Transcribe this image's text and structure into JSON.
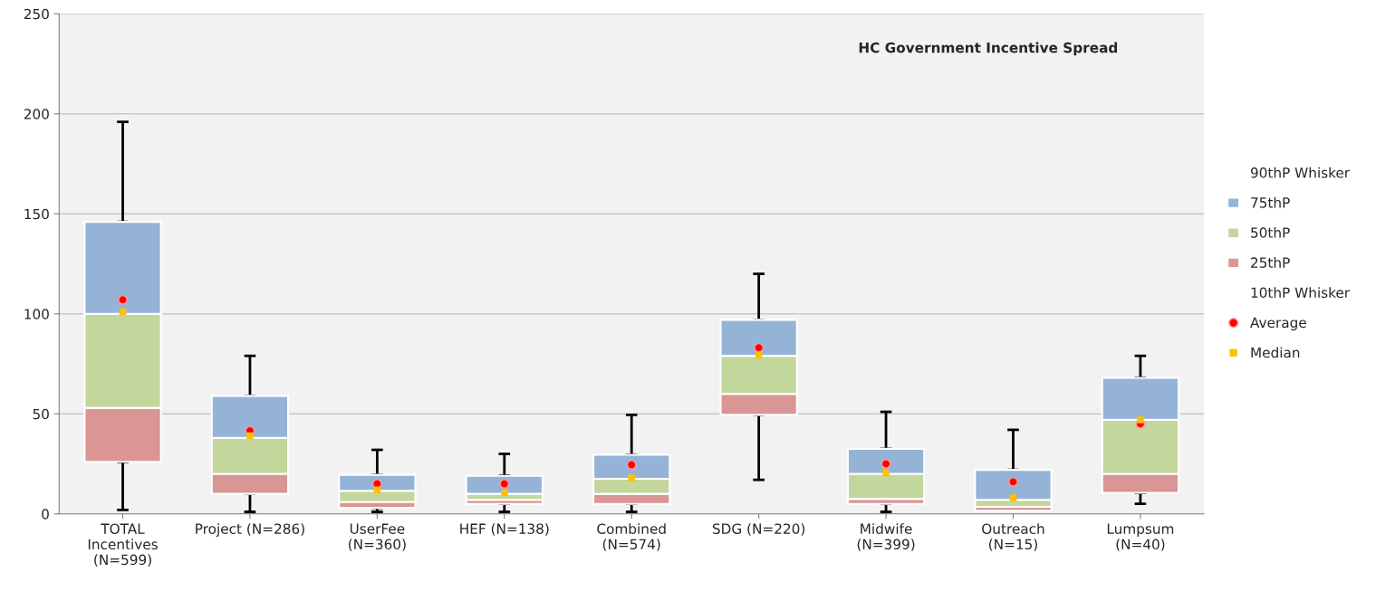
{
  "chart_data": {
    "type": "bar",
    "title": "HC Government Incentive Spread",
    "legend": "right",
    "grid": "y",
    "categories": [
      "TOTAL\nIncentives\n(N=599)",
      "Project (N=286)",
      "UserFee\n(N=360)",
      "HEF (N=138)",
      "Combined\n(N=574)",
      "SDG (N=220)",
      "Midwife\n(N=399)",
      "Outreach\n(N=15)",
      "Lumpsum\n(N=40)"
    ],
    "ylim": [
      0,
      250
    ],
    "yticks": [
      0,
      50,
      100,
      150,
      200,
      250
    ],
    "series": [
      {
        "name": "25thP",
        "type": "bar",
        "color": "#d99694",
        "base": [
          26,
          10,
          3,
          5,
          5,
          49.5,
          5,
          1.5,
          10.5
        ],
        "values": [
          27,
          10,
          3,
          2,
          5,
          10.5,
          2.5,
          2,
          9.5
        ],
        "errors": [
          [
            2,
            26
          ],
          [
            1,
            10
          ],
          [
            1,
            3
          ],
          [
            1,
            5
          ],
          [
            1,
            5
          ],
          [
            17,
            49.5
          ],
          [
            1,
            5
          ],
          null,
          [
            5,
            10.5
          ]
        ]
      },
      {
        "name": "50thP",
        "type": "bar",
        "color": "#c3d69b",
        "base": [
          53,
          20,
          6,
          7,
          10,
          60,
          7.5,
          3.5,
          20
        ],
        "values": [
          47,
          18,
          5.5,
          3,
          7.5,
          19,
          12.5,
          3.5,
          27
        ]
      },
      {
        "name": "75thP",
        "type": "bar",
        "color": "#95b3d7",
        "base": [
          100,
          38,
          11.5,
          10,
          17.5,
          79,
          20,
          7,
          47
        ],
        "values": [
          46,
          21,
          8,
          9,
          12,
          18,
          12.5,
          15,
          21
        ],
        "errors": [
          [
            146,
            196
          ],
          [
            59,
            79
          ],
          [
            19.5,
            32
          ],
          [
            19,
            30
          ],
          [
            29.5,
            49.5
          ],
          [
            97,
            120
          ],
          [
            32.5,
            51
          ],
          [
            22,
            42
          ],
          [
            68,
            79
          ]
        ]
      },
      {
        "name": "90thP Whisker",
        "type": "scatter",
        "marker": "none",
        "values": [
          null,
          null,
          null,
          null,
          null,
          null,
          null,
          null,
          null
        ]
      },
      {
        "name": "10thP Whisker",
        "type": "scatter",
        "marker": "none",
        "values": [
          null,
          null,
          null,
          null,
          null,
          null,
          null,
          null,
          null
        ]
      },
      {
        "name": "Average",
        "type": "scatter",
        "marker": "circle",
        "color": "#ff0000",
        "values": [
          107,
          41.5,
          15,
          15,
          24.5,
          83,
          25,
          16,
          45
        ]
      },
      {
        "name": "Median",
        "type": "scatter",
        "marker": "square",
        "color": "#ffc000",
        "values": [
          101,
          39,
          12,
          10.5,
          18,
          79.5,
          20.5,
          8,
          47
        ]
      }
    ]
  }
}
